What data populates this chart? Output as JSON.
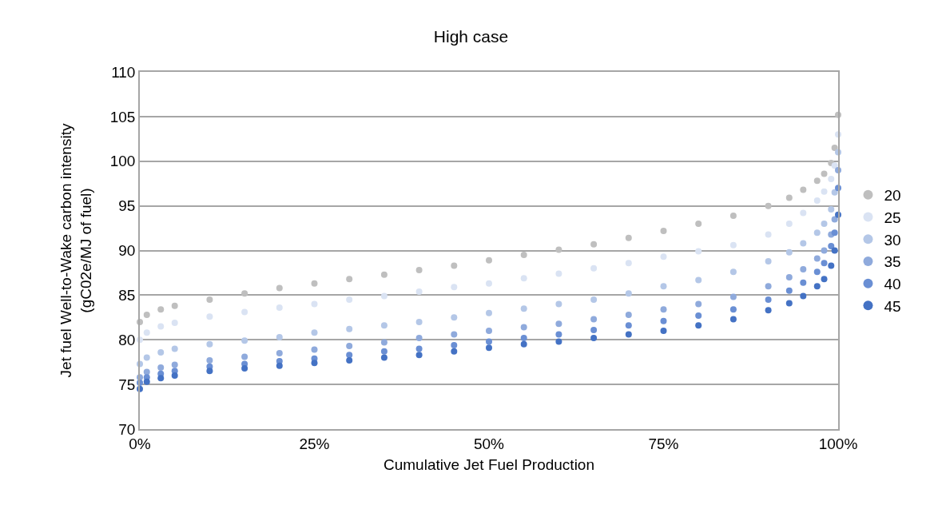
{
  "chart_data": {
    "type": "scatter",
    "title": "High case",
    "xlabel": "Cumulative Jet Fuel Production",
    "ylabel": "Jet fuel Well-to-Wake carbon intensity\n(gC02e/MJ of fuel)",
    "xlim": [
      0,
      1
    ],
    "xticks": [
      {
        "value": 0,
        "label": "0%"
      },
      {
        "value": 0.25,
        "label": "25%"
      },
      {
        "value": 0.5,
        "label": "50%"
      },
      {
        "value": 0.75,
        "label": "75%"
      },
      {
        "value": 1,
        "label": "100%"
      }
    ],
    "ylim": [
      70,
      110
    ],
    "yticks": [
      70,
      75,
      80,
      85,
      90,
      95,
      100,
      105,
      110
    ],
    "grid": "y",
    "legend": "right",
    "marker": "circle",
    "x": [
      0,
      0.01,
      0.03,
      0.05,
      0.1,
      0.15,
      0.2,
      0.25,
      0.3,
      0.35,
      0.4,
      0.45,
      0.5,
      0.55,
      0.6,
      0.65,
      0.7,
      0.75,
      0.8,
      0.85,
      0.9,
      0.93,
      0.95,
      0.97,
      0.98,
      0.99,
      0.995,
      1
    ],
    "series": [
      {
        "name": "20",
        "color": "#bfbfbf",
        "values": [
          82.0,
          82.8,
          83.4,
          83.8,
          84.5,
          85.2,
          85.8,
          86.3,
          86.8,
          87.3,
          87.8,
          88.3,
          88.9,
          89.5,
          90.1,
          90.7,
          91.4,
          92.2,
          93.0,
          93.9,
          95.0,
          95.9,
          96.8,
          97.8,
          98.6,
          99.8,
          101.5,
          105.2
        ]
      },
      {
        "name": "25",
        "color": "#dae3f3",
        "values": [
          80.0,
          80.8,
          81.5,
          81.9,
          82.6,
          83.1,
          83.6,
          84.0,
          84.5,
          84.9,
          85.4,
          85.9,
          86.3,
          86.9,
          87.4,
          88.0,
          88.6,
          89.3,
          89.9,
          90.6,
          91.8,
          93.0,
          94.2,
          95.6,
          96.6,
          98.0,
          99.5,
          103.0
        ]
      },
      {
        "name": "30",
        "color": "#b4c7e7",
        "values": [
          77.3,
          78.0,
          78.6,
          79.0,
          79.5,
          79.9,
          80.3,
          80.8,
          81.2,
          81.6,
          82.0,
          82.5,
          83.0,
          83.5,
          84.0,
          84.5,
          85.2,
          86.0,
          86.7,
          87.6,
          88.8,
          89.8,
          90.8,
          92.0,
          93.0,
          94.6,
          96.5,
          101.0
        ]
      },
      {
        "name": "35",
        "color": "#8faadc",
        "values": [
          75.8,
          76.4,
          76.9,
          77.2,
          77.7,
          78.1,
          78.5,
          78.9,
          79.3,
          79.7,
          80.2,
          80.6,
          81.0,
          81.4,
          81.8,
          82.3,
          82.8,
          83.4,
          84.0,
          84.8,
          86.0,
          87.0,
          87.9,
          89.1,
          90.0,
          91.8,
          93.5,
          99.0
        ]
      },
      {
        "name": "40",
        "color": "#6a8fd4",
        "values": [
          75.2,
          75.8,
          76.2,
          76.5,
          77.0,
          77.3,
          77.6,
          77.9,
          78.3,
          78.7,
          79.0,
          79.4,
          79.8,
          80.2,
          80.6,
          81.1,
          81.6,
          82.1,
          82.7,
          83.4,
          84.5,
          85.5,
          86.4,
          87.6,
          88.6,
          90.5,
          92.0,
          97.0
        ]
      },
      {
        "name": "45",
        "color": "#4472c4",
        "values": [
          74.5,
          75.3,
          75.7,
          76.0,
          76.5,
          76.8,
          77.1,
          77.4,
          77.7,
          78.0,
          78.3,
          78.7,
          79.1,
          79.5,
          79.8,
          80.2,
          80.6,
          81.0,
          81.6,
          82.3,
          83.3,
          84.1,
          84.9,
          86.0,
          86.8,
          88.3,
          90.0,
          94.0
        ]
      }
    ]
  }
}
